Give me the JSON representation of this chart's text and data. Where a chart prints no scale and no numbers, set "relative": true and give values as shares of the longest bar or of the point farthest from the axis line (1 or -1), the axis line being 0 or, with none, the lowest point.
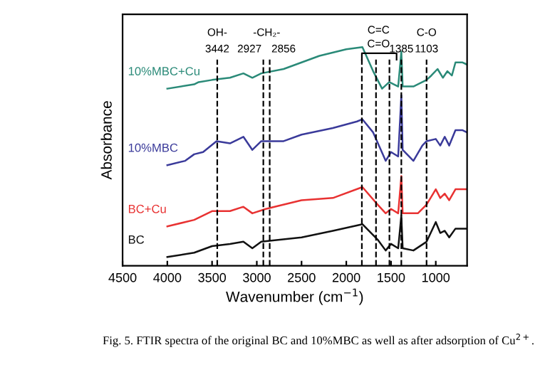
{
  "chart_data": {
    "type": "line",
    "relative": true,
    "xlabel": "Wavenumber (cm$^{−1}$)",
    "ylabel": "Absorbance",
    "xlim": [
      4500,
      650
    ],
    "xticks": [
      4500,
      4000,
      3500,
      3000,
      2500,
      2000,
      1500,
      1000
    ],
    "tick_labels": "x",
    "grid": false,
    "legend": false,
    "line_style": "solid",
    "marker": "none",
    "series": [
      {
        "name": "BC",
        "color": "#111111",
        "x": [
          4000,
          3700,
          3500,
          3300,
          3150,
          3050,
          2950,
          2500,
          2150,
          1820,
          1650,
          1560,
          1500,
          1420,
          1385,
          1370,
          1250,
          1103,
          1000,
          950,
          900,
          850,
          780,
          650
        ],
        "values": [
          0.04,
          0.06,
          0.09,
          0.1,
          0.11,
          0.08,
          0.11,
          0.13,
          0.16,
          0.19,
          0.12,
          0.07,
          0.1,
          0.08,
          0.23,
          0.08,
          0.07,
          0.11,
          0.2,
          0.15,
          0.16,
          0.13,
          0.17,
          0.17
        ]
      },
      {
        "name": "BC+Cu",
        "color": "#e83232",
        "x": [
          4000,
          3700,
          3500,
          3300,
          3150,
          3050,
          2900,
          2500,
          2150,
          1820,
          1650,
          1560,
          1500,
          1420,
          1385,
          1370,
          1200,
          1103,
          1000,
          950,
          900,
          850,
          780,
          650
        ],
        "values": [
          0.18,
          0.21,
          0.25,
          0.25,
          0.27,
          0.24,
          0.26,
          0.3,
          0.31,
          0.36,
          0.28,
          0.24,
          0.26,
          0.24,
          0.41,
          0.24,
          0.24,
          0.28,
          0.35,
          0.31,
          0.33,
          0.3,
          0.35,
          0.35
        ]
      },
      {
        "name": "10%MBC",
        "color": "#3a3a9a",
        "x": [
          4000,
          3800,
          3700,
          3600,
          3450,
          3300,
          3150,
          3050,
          2950,
          2700,
          2500,
          2150,
          1880,
          1820,
          1700,
          1560,
          1500,
          1420,
          1385,
          1370,
          1250,
          1150,
          1103,
          1000,
          950,
          900,
          850,
          780,
          700,
          650
        ],
        "values": [
          0.46,
          0.48,
          0.51,
          0.52,
          0.57,
          0.56,
          0.59,
          0.53,
          0.57,
          0.57,
          0.6,
          0.63,
          0.66,
          0.67,
          0.61,
          0.48,
          0.52,
          0.5,
          0.78,
          0.53,
          0.48,
          0.55,
          0.57,
          0.58,
          0.55,
          0.59,
          0.55,
          0.62,
          0.62,
          0.61
        ]
      },
      {
        "name": "10%MBC+Cu",
        "color": "#2a8a78",
        "x": [
          4000,
          3700,
          3650,
          3500,
          3300,
          3150,
          3050,
          2950,
          2700,
          2500,
          2300,
          2000,
          1820,
          1700,
          1600,
          1520,
          1420,
          1385,
          1370,
          1250,
          1103,
          1050,
          980,
          920,
          870,
          820,
          780,
          700,
          650
        ],
        "values": [
          0.81,
          0.83,
          0.84,
          0.85,
          0.86,
          0.88,
          0.86,
          0.88,
          0.9,
          0.93,
          0.96,
          0.99,
          1.0,
          0.89,
          0.81,
          0.84,
          0.82,
          0.98,
          0.82,
          0.82,
          0.85,
          0.87,
          0.9,
          0.86,
          0.89,
          0.87,
          0.93,
          0.93,
          0.92
        ]
      }
    ],
    "ref_lines": [
      {
        "axis": "x",
        "value": 3442,
        "label": "3442",
        "line_style": "dashed",
        "color": "#000000"
      },
      {
        "axis": "x",
        "value": 2927,
        "label": "2927",
        "line_style": "dashed",
        "color": "#000000"
      },
      {
        "axis": "x",
        "value": 2856,
        "label": "2856",
        "line_style": "dashed",
        "color": "#000000"
      },
      {
        "axis": "x",
        "value": 1826,
        "line_style": "dashed",
        "color": "#000000"
      },
      {
        "axis": "x",
        "value": 1668,
        "line_style": "dashed",
        "color": "#000000"
      },
      {
        "axis": "x",
        "value": 1518,
        "line_style": "dashed",
        "color": "#000000"
      },
      {
        "axis": "x",
        "value": 1385,
        "label": "1385",
        "line_style": "dashed",
        "color": "#000000"
      },
      {
        "axis": "x",
        "value": 1103,
        "label": "1103",
        "line_style": "dashed",
        "color": "#000000"
      }
    ],
    "annotations": [
      "OH-",
      "-CH₂-",
      "C=C",
      "C=O",
      "C-O",
      "Fig. 5. FTIR spectra of the original BC and 10%MBC as well as after adsorption of Cu$^{2+}$."
    ]
  }
}
